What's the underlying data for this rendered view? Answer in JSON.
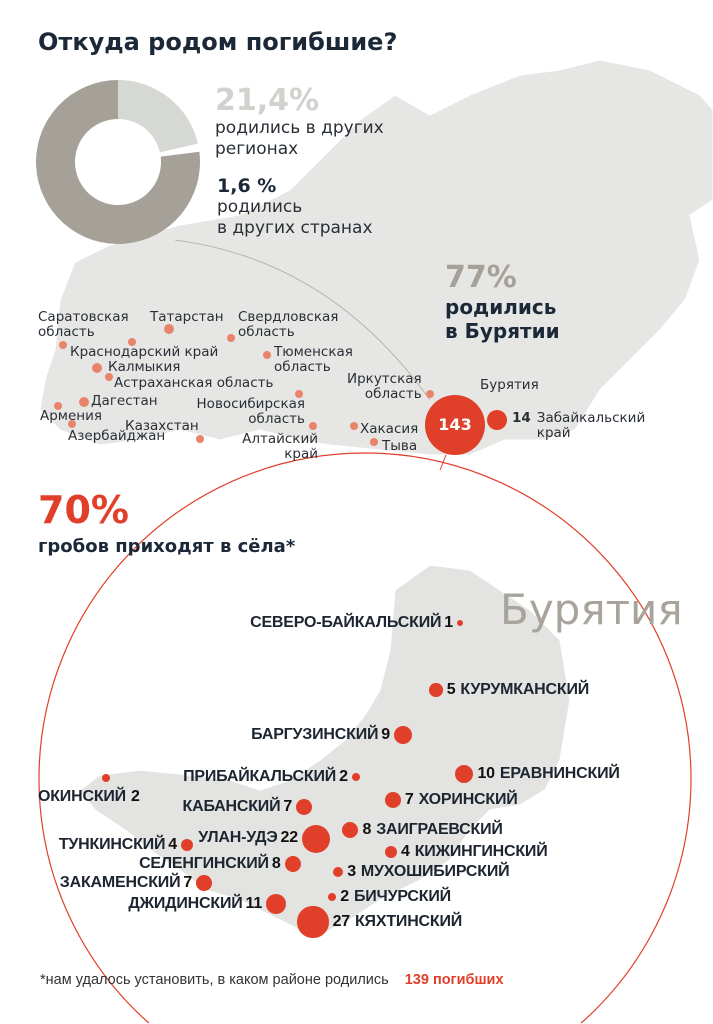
{
  "title": "Откуда родом погибшие?",
  "donut": {
    "segments": [
      {
        "label": "родились в Бурятии",
        "value": 77,
        "color": "#a6a198"
      },
      {
        "label": "родились в других регионах",
        "value": 21.4,
        "color": "#d6d8d3"
      },
      {
        "label": "родились в других странах",
        "value": 1.6,
        "color": "#ffffff"
      }
    ]
  },
  "other_regions": {
    "percent": "21,4%",
    "text1": "родились в других",
    "text2": "регионах"
  },
  "other_countries": {
    "percent": "1,6 %",
    "text1": "родились",
    "text2": "в других странах"
  },
  "buryatia_share": {
    "percent": "77%",
    "text1": "родились",
    "text2": "в Бурятии"
  },
  "regions": [
    {
      "name": "Саратовская\nобласть"
    },
    {
      "name": "Татарстан"
    },
    {
      "name": "Свердловская\nобласть"
    },
    {
      "name": "Краснодарский край"
    },
    {
      "name": "Калмыкия"
    },
    {
      "name": "Тюменская\nобласть"
    },
    {
      "name": "Астраханская область"
    },
    {
      "name": "Дагестан"
    },
    {
      "name": "Армения"
    },
    {
      "name": "Азербайджан"
    },
    {
      "name": "Казахстан"
    },
    {
      "name": "Новосибирская\nобласть"
    },
    {
      "name": "Алтайский\nкрай"
    },
    {
      "name": "Иркутская\nобласть"
    },
    {
      "name": "Хакасия"
    },
    {
      "name": "Тыва"
    },
    {
      "name": "Бурятия",
      "count": 143
    },
    {
      "name": "Забайкальский\nкрай",
      "count": 14
    }
  ],
  "villages": {
    "percent": "70%",
    "text": "гробов приходят в сёла*"
  },
  "buryatia_map_title": "Бурятия",
  "districts": [
    {
      "name": "СЕВЕРО-БАЙКАЛЬСКИЙ",
      "count": 1
    },
    {
      "name": "КУРУМКАНСКИЙ",
      "count": 5
    },
    {
      "name": "БАРГУЗИНСКИЙ",
      "count": 9
    },
    {
      "name": "ПРИБАЙКАЛЬСКИЙ",
      "count": 2
    },
    {
      "name": "ЕРАВНИНСКИЙ",
      "count": 10
    },
    {
      "name": "ОКИНСКИЙ",
      "count": 2
    },
    {
      "name": "КАБАНСКИЙ",
      "count": 7
    },
    {
      "name": "ХОРИНСКИЙ",
      "count": 7
    },
    {
      "name": "УЛАН-УДЭ",
      "count": 22
    },
    {
      "name": "ЗАИГРАЕВСКИЙ",
      "count": 8
    },
    {
      "name": "ТУНКИНСКИЙ",
      "count": 4
    },
    {
      "name": "КИЖИНГИНСКИЙ",
      "count": 4
    },
    {
      "name": "СЕЛЕНГИНСКИЙ",
      "count": 8
    },
    {
      "name": "МУХОШИБИРСКИЙ",
      "count": 3
    },
    {
      "name": "ЗАКАМЕНСКИЙ",
      "count": 7
    },
    {
      "name": "БИЧУРСКИЙ",
      "count": 2
    },
    {
      "name": "ДЖИДИНСКИЙ",
      "count": 11
    },
    {
      "name": "КЯХТИНСКИЙ",
      "count": 27
    }
  ],
  "footnote": {
    "text": "*нам удалось установить, в каком районе родились",
    "highlight": "139 погибших"
  },
  "colors": {
    "accent": "#e0402a",
    "region_dot": "#e8846a",
    "map": "#e3e4e2",
    "title": "#1b2838"
  }
}
